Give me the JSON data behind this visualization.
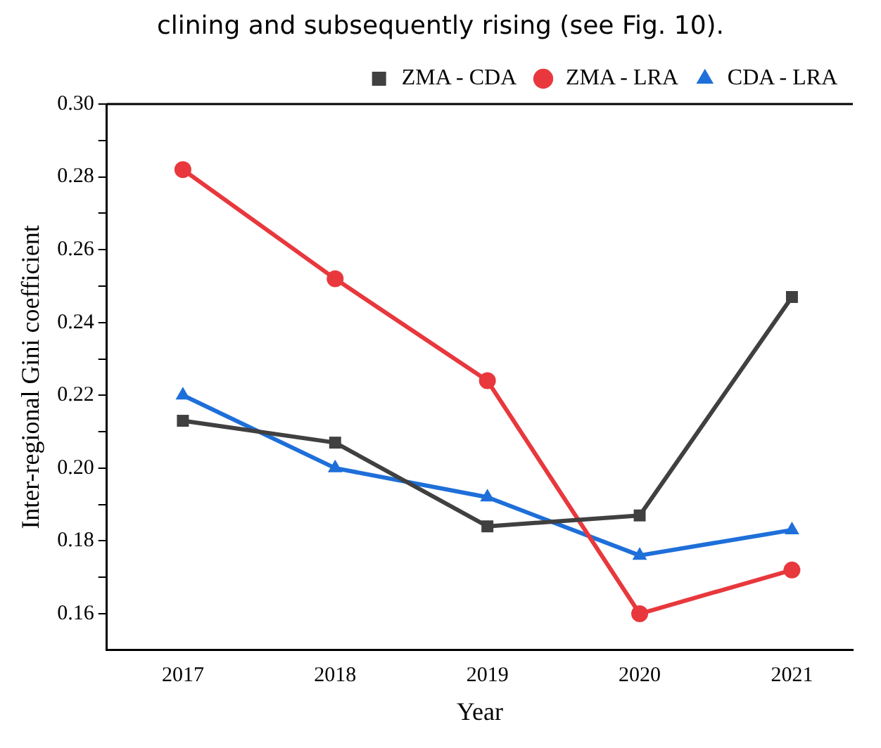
{
  "chart_data": {
    "type": "line",
    "annotations": [
      "clining and subsequently rising (see Fig. 10)."
    ],
    "xlabel": "Year",
    "ylabel": "Inter-regional Gini coefficient",
    "x": [
      2017,
      2018,
      2019,
      2020,
      2021
    ],
    "xlim": [
      2016.5,
      2021.4
    ],
    "xticks": [
      2017,
      2018,
      2019,
      2020,
      2021
    ],
    "ylim": [
      0.15,
      0.3
    ],
    "yticks": [
      {
        "value": 0.16,
        "label": "0.16"
      },
      {
        "value": 0.17,
        "label": null
      },
      {
        "value": 0.18,
        "label": "0.18"
      },
      {
        "value": 0.19,
        "label": null
      },
      {
        "value": 0.2,
        "label": "0.20"
      },
      {
        "value": 0.21,
        "label": null
      },
      {
        "value": 0.22,
        "label": "0.22"
      },
      {
        "value": 0.23,
        "label": null
      },
      {
        "value": 0.24,
        "label": "0.24"
      },
      {
        "value": 0.25,
        "label": null
      },
      {
        "value": 0.26,
        "label": "0.26"
      },
      {
        "value": 0.27,
        "label": null
      },
      {
        "value": 0.28,
        "label": "0.28"
      },
      {
        "value": 0.29,
        "label": null
      },
      {
        "value": 0.3,
        "label": "0.30"
      }
    ],
    "series": [
      {
        "name": "ZMA - CDA",
        "color": "#404040",
        "marker": "square",
        "values": [
          0.213,
          0.207,
          0.184,
          0.187,
          0.247
        ]
      },
      {
        "name": "ZMA - LRA",
        "color": "#e8383d",
        "marker": "circle",
        "values": [
          0.282,
          0.252,
          0.224,
          0.16,
          0.172
        ]
      },
      {
        "name": "CDA - LRA",
        "color": "#1e6fd9",
        "marker": "triangle",
        "values": [
          0.22,
          0.2,
          0.192,
          0.176,
          0.183
        ]
      }
    ],
    "legend": "top",
    "grid": false,
    "line_style": "solid"
  }
}
